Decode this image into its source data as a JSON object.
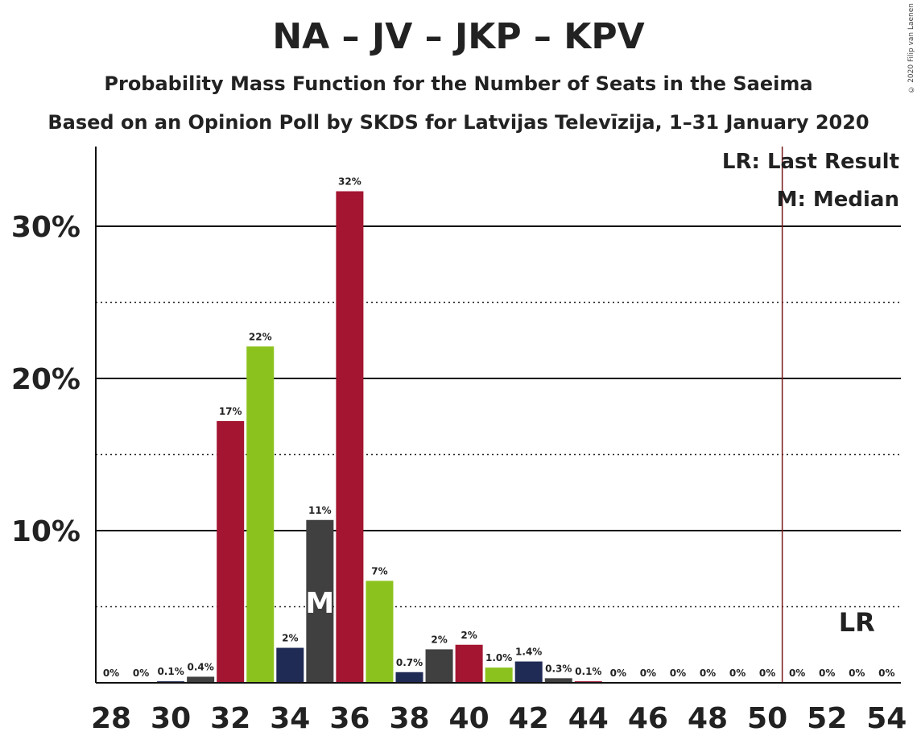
{
  "title": "NA – JV – JKP – KPV",
  "subtitle": "Probability Mass Function for the Number of Seats in the Saeima",
  "subtitle2": "Based on an Opinion Poll by SKDS for Latvijas Televīzija, 1–31 January 2020",
  "copyright": "© 2020 Filip van Laenen",
  "colors": {
    "crimson": "#A31530",
    "green": "#8CC21E",
    "navy": "#1F2A55",
    "darkgray": "#404040",
    "lr_line": "#7A1A1A"
  },
  "chart_data": {
    "type": "bar",
    "x": [
      28,
      29,
      30,
      31,
      32,
      33,
      34,
      35,
      36,
      37,
      38,
      39,
      40,
      41,
      42,
      43,
      44,
      45,
      46,
      47,
      48,
      49,
      50,
      51,
      52,
      53,
      54
    ],
    "values": [
      0,
      0,
      0.1,
      0.4,
      17.2,
      22.1,
      2.3,
      10.7,
      32.3,
      6.7,
      0.7,
      2.2,
      2.5,
      1.0,
      1.4,
      0.3,
      0.1,
      0,
      0,
      0,
      0,
      0,
      0,
      0,
      0,
      0,
      0
    ],
    "data_labels": [
      "0%",
      "0%",
      "0.1%",
      "0.4%",
      "17%",
      "22%",
      "2%",
      "11%",
      "32%",
      "7%",
      "0.7%",
      "2%",
      "2%",
      "1.0%",
      "1.4%",
      "0.3%",
      "0.1%",
      "0%",
      "0%",
      "0%",
      "0%",
      "0%",
      "0%",
      "0%",
      "0%",
      "0%",
      "0%"
    ],
    "bar_colors": [
      "crimson",
      "green",
      "navy",
      "darkgray",
      "crimson",
      "green",
      "navy",
      "darkgray",
      "crimson",
      "green",
      "navy",
      "darkgray",
      "crimson",
      "green",
      "navy",
      "darkgray",
      "crimson",
      "green",
      "navy",
      "darkgray",
      "crimson",
      "green",
      "navy",
      "darkgray",
      "crimson",
      "green",
      "navy"
    ],
    "x_ticks": [
      28,
      30,
      32,
      34,
      36,
      38,
      40,
      42,
      44,
      46,
      48,
      50,
      52,
      54
    ],
    "x_tick_labels": [
      "28",
      "30",
      "32",
      "34",
      "36",
      "38",
      "40",
      "42",
      "44",
      "46",
      "48",
      "50",
      "52",
      "54"
    ],
    "y_ticks": [
      10,
      20,
      30
    ],
    "y_tick_labels": [
      "10%",
      "20%",
      "30%"
    ],
    "y_minor_ticks": [
      5,
      15,
      25
    ],
    "ylim": [
      0,
      35
    ],
    "xlim": [
      27.5,
      54.5
    ],
    "median": 35,
    "median_label": "M",
    "last_result": 50.5,
    "lr_label": "LR",
    "legend": [
      "LR: Last Result",
      "M: Median"
    ],
    "legend_position": "top-right"
  }
}
